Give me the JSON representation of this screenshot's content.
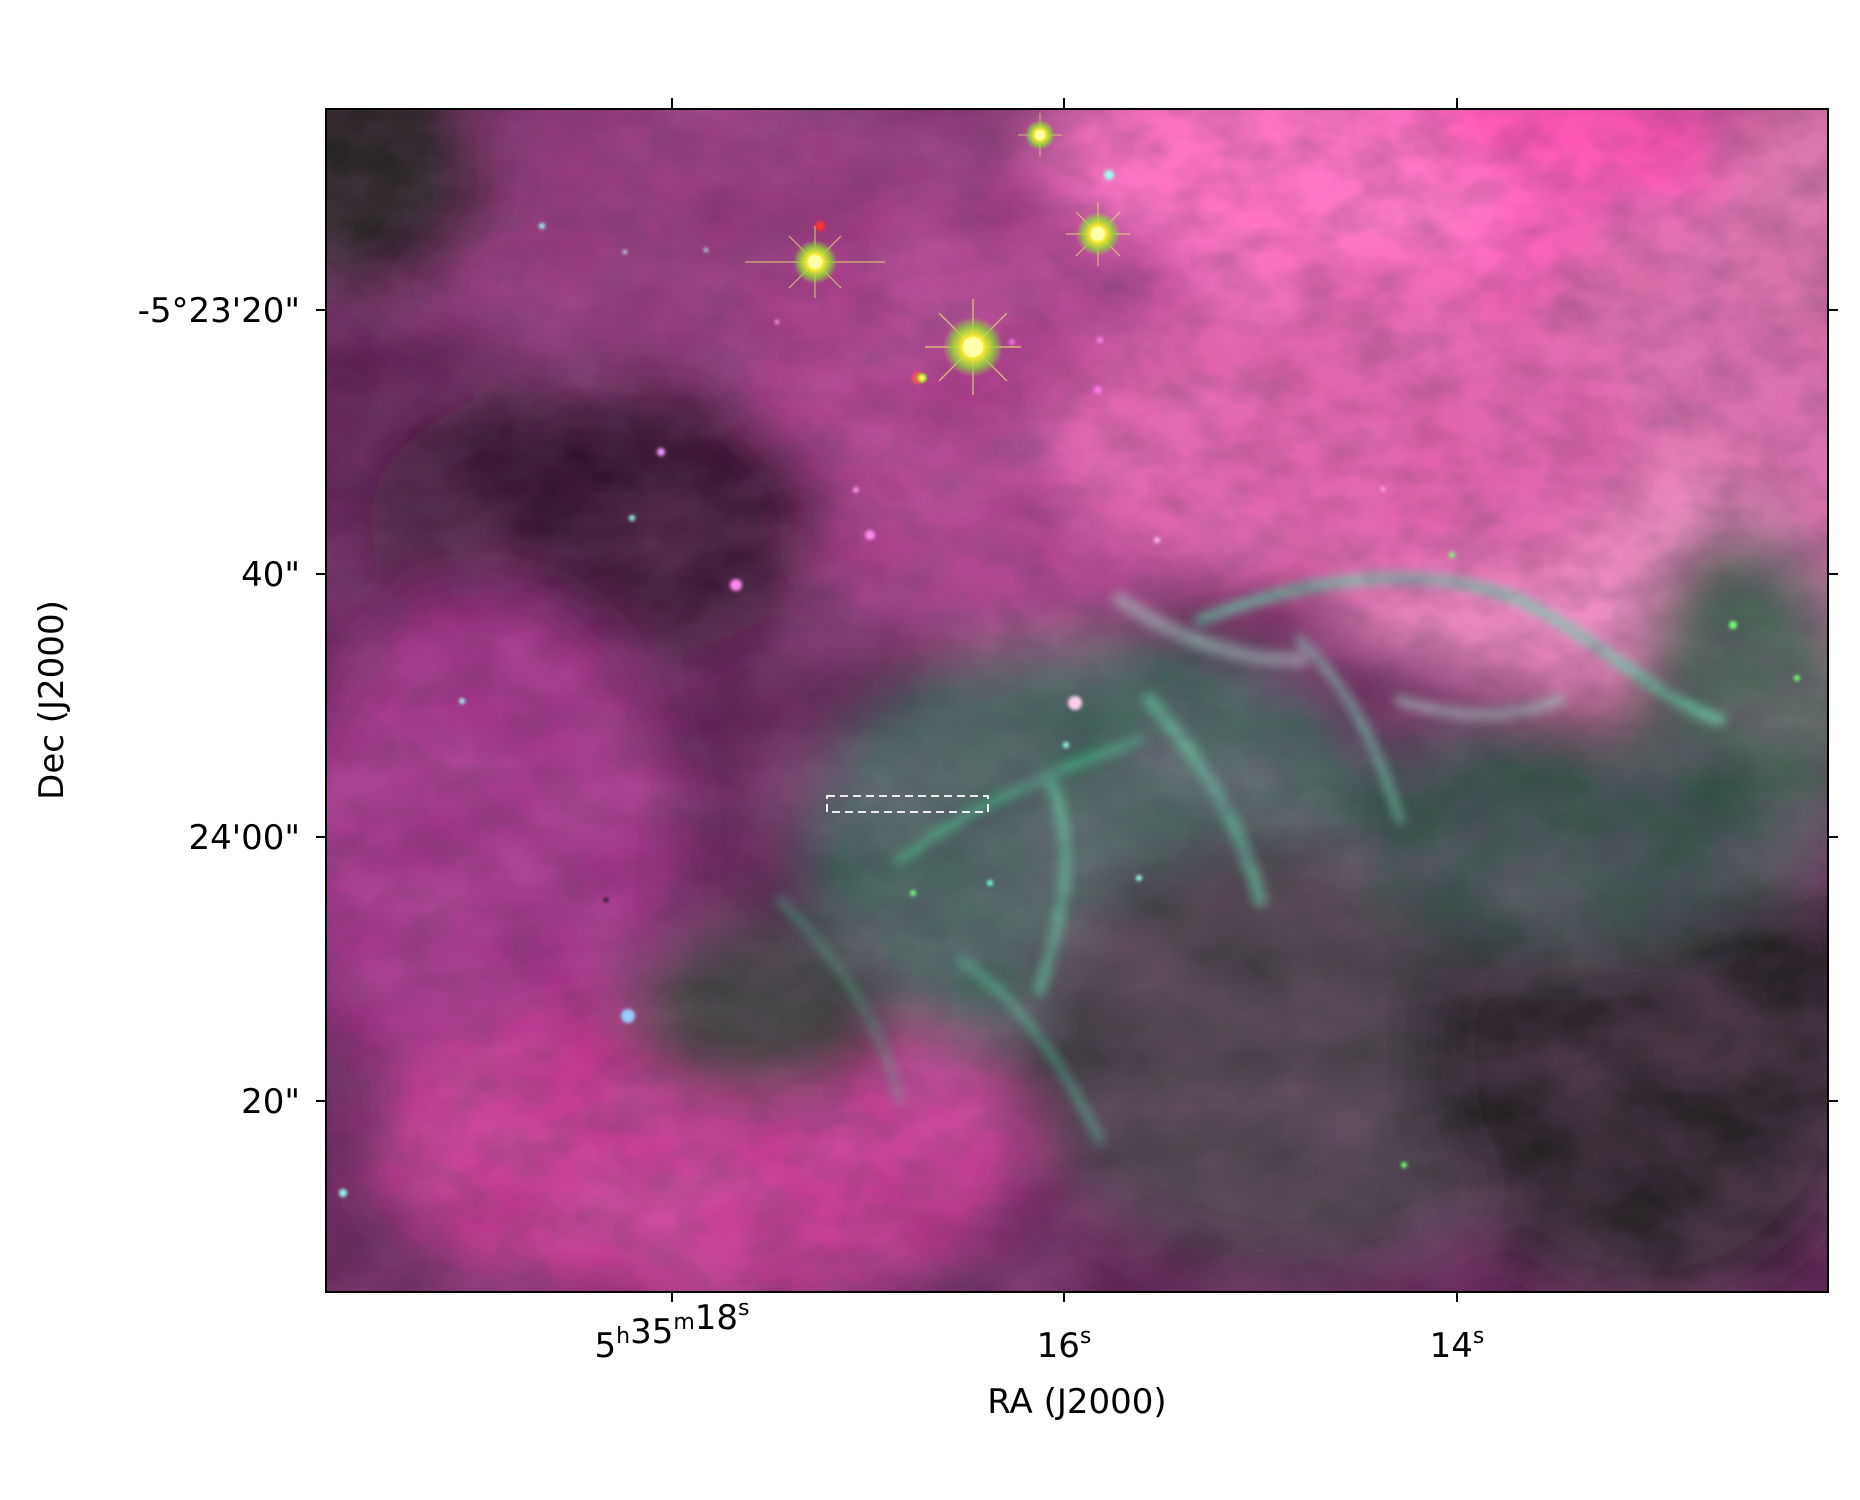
{
  "figure": {
    "xlabel": "RA (J2000)",
    "ylabel": "Dec (J2000)",
    "x_ticks": [
      {
        "base": "5",
        "parts": [
          {
            "t": "5",
            "sup": "h"
          },
          {
            "t": "35",
            "sup": "m"
          },
          {
            "t": "18",
            "sup": "s"
          }
        ]
      },
      {
        "base": "16",
        "parts": [
          {
            "t": "16",
            "sup": "s"
          }
        ]
      },
      {
        "base": "14",
        "parts": [
          {
            "t": "14",
            "sup": "s"
          }
        ]
      }
    ],
    "x_tick_labels": [
      "5h35m18s",
      "16s",
      "14s"
    ],
    "y_tick_labels": [
      "-5°23'20\"",
      "40\"",
      "24'00\"",
      "20\""
    ],
    "colors": {
      "nebula_magenta": "#c2358f",
      "nebula_pink": "#ff5fb8",
      "filament_green": "#34c58a",
      "dark_lane": "#1d0d1a",
      "star_core": "#ffff66"
    },
    "overlay": "dashed-rectangle"
  }
}
